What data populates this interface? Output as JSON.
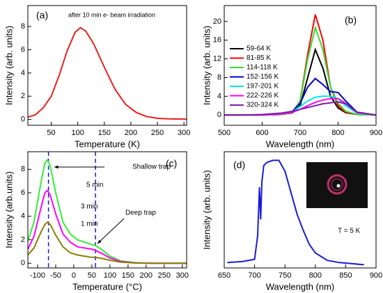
{
  "chart_data": [
    {
      "type": "line",
      "xlabel": "Temperature (K)",
      "ylabel": "Intensity (arb. units)",
      "annotations": [
        "(a)",
        "after 10 min e- beam irradiation"
      ],
      "x": [
        6,
        20,
        35,
        50,
        65,
        80,
        95,
        105,
        115,
        130,
        150,
        170,
        190,
        210,
        230,
        250,
        270,
        305
      ],
      "values": [
        0.2,
        0.4,
        1.0,
        2.0,
        3.8,
        5.9,
        7.5,
        7.9,
        7.6,
        6.5,
        4.5,
        2.6,
        1.3,
        0.6,
        0.25,
        0.1,
        0.05,
        0.02
      ],
      "color": "#e8201c",
      "xlim": [
        6,
        305
      ],
      "ylim": [
        -0.5,
        9.8
      ],
      "xticks": [
        50,
        100,
        150,
        200,
        250,
        300
      ],
      "yticks": [
        0,
        2,
        4,
        6,
        8
      ]
    },
    {
      "type": "line",
      "xlabel": "Wavelength (nm)",
      "ylabel": "Intensity (arb. units)",
      "annotations": [
        "(b)"
      ],
      "x": [
        500,
        550,
        600,
        650,
        680,
        700,
        720,
        740,
        760,
        780,
        800,
        820,
        850,
        900
      ],
      "series": [
        {
          "name": "59-64 K",
          "color": "#000000",
          "values": [
            0,
            0,
            0,
            0.1,
            0.5,
            2,
            8,
            14,
            10,
            4,
            1.5,
            0.5,
            0.1,
            0
          ]
        },
        {
          "name": "81-85 K",
          "color": "#ff0000",
          "values": [
            0,
            0,
            0,
            0.1,
            0.6,
            3,
            13,
            21.5,
            16,
            6,
            2,
            0.6,
            0.1,
            0
          ]
        },
        {
          "name": "114-118 K",
          "color": "#33dd33",
          "values": [
            0,
            0,
            0,
            0.1,
            0.6,
            3,
            12,
            18.7,
            14,
            6,
            2.5,
            0.8,
            0.1,
            0
          ]
        },
        {
          "name": "152-156 K",
          "color": "#0000cc",
          "values": [
            0,
            0,
            0,
            0.2,
            0.8,
            2.5,
            6,
            7.8,
            6.5,
            5,
            4.8,
            3,
            0.6,
            0
          ]
        },
        {
          "name": "197-201 K",
          "color": "#00e5ee",
          "values": [
            0,
            0,
            0,
            0.2,
            0.7,
            1.8,
            3,
            3.8,
            4,
            4,
            3.5,
            2,
            0.4,
            0
          ]
        },
        {
          "name": "222-226 K",
          "color": "#ff00ff",
          "values": [
            0,
            0,
            0,
            0.2,
            0.6,
            1.2,
            2,
            2.7,
            3.2,
            3.5,
            3.5,
            2.5,
            0.5,
            0
          ]
        },
        {
          "name": "320-324 K",
          "color": "#7a1fa2",
          "values": [
            0,
            0,
            0.1,
            0.4,
            0.8,
            1.2,
            1.6,
            2,
            2.4,
            2.6,
            2.8,
            2.4,
            0.6,
            0
          ]
        }
      ],
      "xlim": [
        500,
        900
      ],
      "ylim": [
        -2.2,
        23.4
      ],
      "xticks": [
        500,
        600,
        700,
        800,
        900
      ],
      "yticks": [
        0,
        4,
        8,
        12,
        16,
        20
      ]
    },
    {
      "type": "line",
      "xlabel": "Temperature (°C)",
      "ylabel": "Intensity (arb.units)",
      "annotations": [
        "(c)",
        "Shallow trap",
        "Deep trap",
        "5 min",
        "3 min",
        "1 min"
      ],
      "reference_lines": [
        -70,
        60
      ],
      "x": [
        -127,
        -110,
        -90,
        -80,
        -73,
        -65,
        -50,
        -30,
        -10,
        10,
        30,
        50,
        60,
        80,
        100,
        130,
        170,
        220,
        312
      ],
      "series": [
        {
          "color": "#33ee33",
          "values": [
            1.9,
            3.5,
            7,
            8.5,
            8.8,
            8.3,
            6,
            3.5,
            2.5,
            2,
            1.8,
            1.6,
            1.5,
            1.1,
            0.6,
            0.2,
            0.05,
            0,
            0
          ]
        },
        {
          "color": "#ff00ff",
          "values": [
            1.2,
            2.3,
            4.8,
            6,
            6.2,
            5.8,
            4.2,
            2.5,
            1.8,
            1.4,
            1.3,
            1.2,
            1.1,
            0.8,
            0.45,
            0.15,
            0.03,
            0,
            0
          ]
        },
        {
          "color": "#8b7d00",
          "values": [
            0.7,
            1.3,
            2.7,
            3.3,
            3.5,
            3.3,
            2.4,
            1.4,
            0.9,
            0.7,
            0.6,
            0.5,
            0.5,
            0.4,
            0.25,
            0.1,
            0.02,
            0,
            0
          ]
        }
      ],
      "xlim": [
        -127,
        312
      ],
      "ylim": [
        -0.4,
        9.5
      ],
      "xticks": [
        -100,
        -50,
        0,
        50,
        100,
        150,
        200,
        250,
        300
      ],
      "yticks": [
        0,
        2,
        4,
        6,
        8
      ]
    },
    {
      "type": "line",
      "xlabel": "Wavelength (nm)",
      "ylabel": "Intensity (arb. units)",
      "annotations": [
        "(d)",
        "T = 5 K"
      ],
      "x": [
        655,
        680,
        700,
        705,
        708,
        710,
        712,
        715,
        720,
        730,
        740,
        745,
        750,
        760,
        770,
        780,
        790,
        800,
        820,
        840,
        860,
        880
      ],
      "values": [
        0.05,
        0.06,
        0.08,
        0.3,
        0.75,
        0.45,
        0.8,
        0.95,
        0.98,
        1,
        1,
        0.95,
        0.9,
        0.7,
        0.5,
        0.35,
        0.22,
        0.14,
        0.07,
        0.05,
        0.04,
        0.03
      ],
      "color": "#1a1adb",
      "xlim": [
        650,
        900
      ],
      "ylim": [
        0,
        1.08
      ],
      "xticks": [
        650,
        700,
        750,
        800,
        850,
        900
      ]
    }
  ]
}
